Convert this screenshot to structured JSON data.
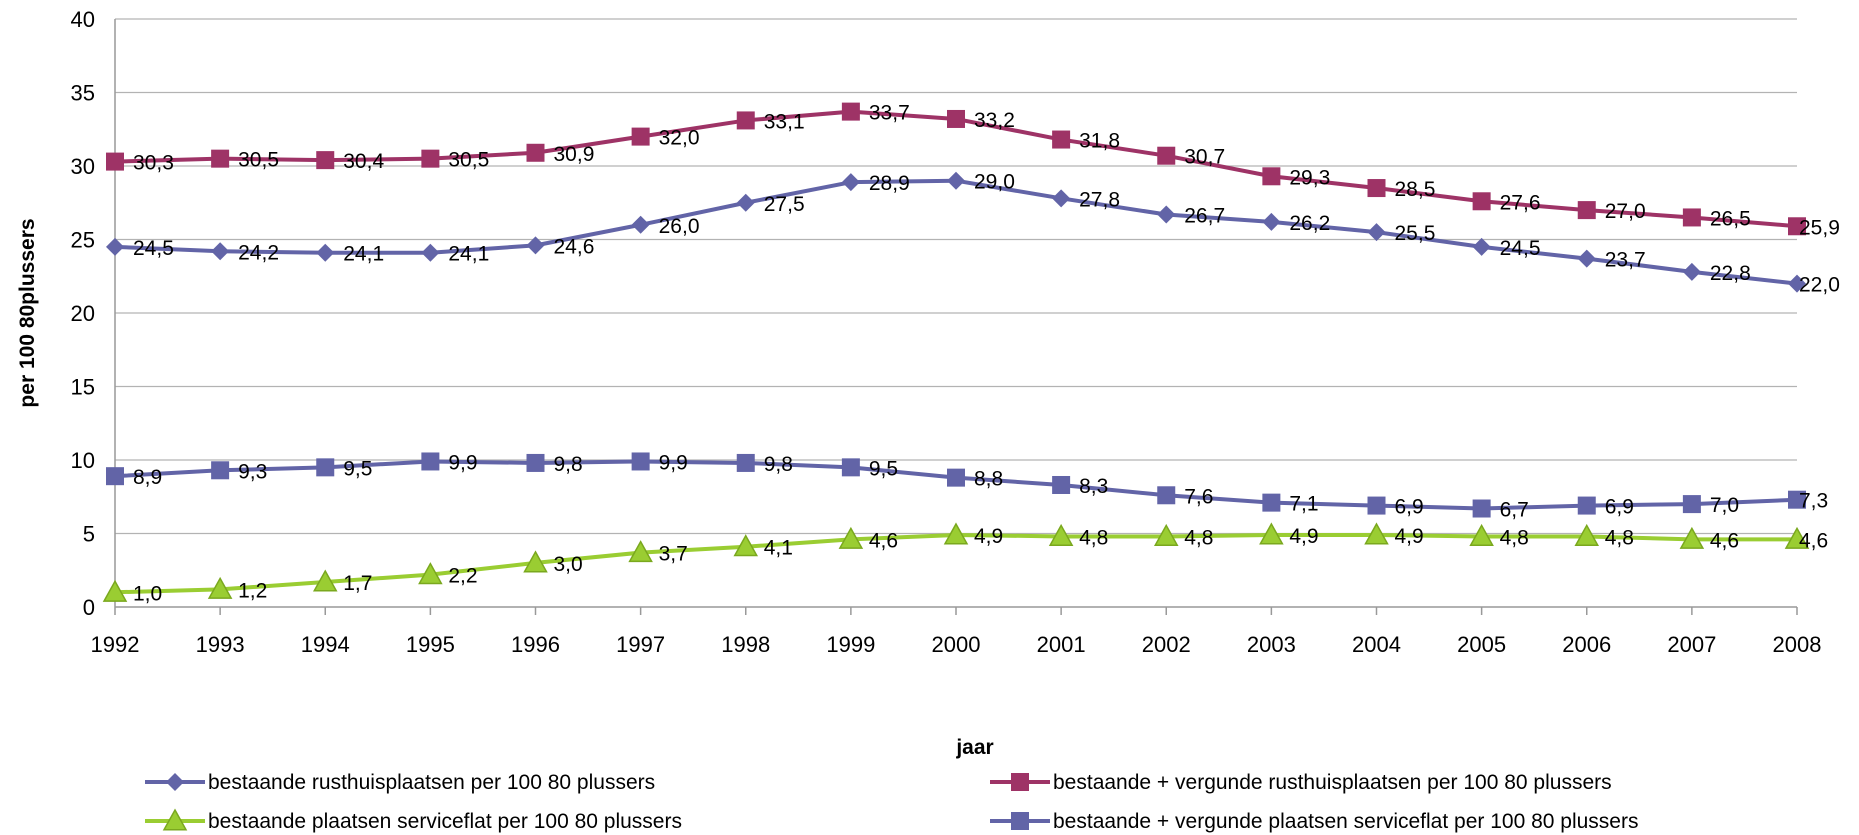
{
  "chart_data": {
    "type": "line",
    "xlabel": "jaar",
    "ylabel": "per 100 80plussers",
    "ylim": [
      0,
      40
    ],
    "yticks": [
      0,
      5,
      10,
      15,
      20,
      25,
      30,
      35,
      40
    ],
    "grid": true,
    "legend_position": "bottom",
    "x": [
      "1992",
      "1993",
      "1994",
      "1995",
      "1996",
      "1997",
      "1998",
      "1999",
      "2000",
      "2001",
      "2002",
      "2003",
      "2004",
      "2005",
      "2006",
      "2007",
      "2008"
    ],
    "series": [
      {
        "name": "bestaande rusthuisplaatsen per 100 80 plussers",
        "marker": "diamond",
        "color": "#6264a7",
        "values": [
          24.5,
          24.2,
          24.1,
          24.1,
          24.6,
          26.0,
          27.5,
          28.9,
          29.0,
          27.8,
          26.7,
          26.2,
          25.5,
          24.5,
          23.7,
          22.8,
          22.0
        ],
        "labels": [
          "24,5",
          "24,2",
          "24,1",
          "24,1",
          "24,6",
          "26,0",
          "27,5",
          "28,9",
          "29,0",
          "27,8",
          "26,7",
          "26,2",
          "25,5",
          "24,5",
          "23,7",
          "22,8",
          "22,0"
        ]
      },
      {
        "name": "bestaande + vergunde rusthuisplaatsen per 100 80 plussers",
        "marker": "square",
        "color": "#9e3366",
        "values": [
          30.3,
          30.5,
          30.4,
          30.5,
          30.9,
          32.0,
          33.1,
          33.7,
          33.2,
          31.8,
          30.7,
          29.3,
          28.5,
          27.6,
          27.0,
          26.5,
          25.9
        ],
        "labels": [
          "30,3",
          "30,5",
          "30,4",
          "30,5",
          "30,9",
          "32,0",
          "33,1",
          "33,7",
          "33,2",
          "31,8",
          "30,7",
          "29,3",
          "28,5",
          "27,6",
          "27,0",
          "26,5",
          "25,9"
        ]
      },
      {
        "name": "bestaande plaatsen serviceflat per 100 80 plussers",
        "marker": "triangle",
        "color": "#9acd32",
        "values": [
          1.0,
          1.2,
          1.7,
          2.2,
          3.0,
          3.7,
          4.1,
          4.6,
          4.9,
          4.8,
          4.8,
          4.9,
          4.9,
          4.8,
          4.8,
          4.6,
          4.6
        ],
        "labels": [
          "1,0",
          "1,2",
          "1,7",
          "2,2",
          "3,0",
          "3,7",
          "4,1",
          "4,6",
          "4,9",
          "4,8",
          "4,8",
          "4,9",
          "4,9",
          "4,8",
          "4,8",
          "4,6",
          "4,6"
        ]
      },
      {
        "name": "bestaande + vergunde plaatsen serviceflat per 100 80 plussers",
        "marker": "square",
        "color": "#6264a7",
        "values": [
          8.9,
          9.3,
          9.5,
          9.9,
          9.8,
          9.9,
          9.8,
          9.5,
          8.8,
          8.3,
          7.6,
          7.1,
          6.9,
          6.7,
          6.9,
          7.0,
          7.3
        ],
        "labels": [
          "8,9",
          "9,3",
          "9,5",
          "9,9",
          "9,8",
          "9,9",
          "9,8",
          "9,5",
          "8,8",
          "8,3",
          "7,6",
          "7,1",
          "6,9",
          "6,7",
          "6,9",
          "7,0",
          "7,3"
        ]
      }
    ]
  }
}
